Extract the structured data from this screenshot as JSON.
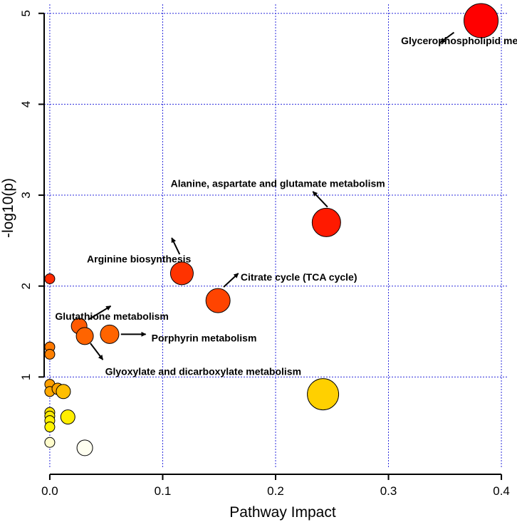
{
  "chart_data": {
    "type": "scatter",
    "title": "",
    "xlabel": "Pathway Impact",
    "ylabel": "-log10(p)",
    "xlim": [
      -0.005,
      0.405
    ],
    "ylim": [
      0.0,
      5.1
    ],
    "xticks": [
      0.0,
      0.1,
      0.2,
      0.3,
      0.4
    ],
    "xtick_labels": [
      "0.0",
      "0.1",
      "0.2",
      "0.3",
      "0.4"
    ],
    "yticks": [
      1,
      2,
      3,
      4,
      5
    ],
    "ytick_labels": [
      "1",
      "2",
      "3",
      "4",
      "5"
    ],
    "grid": true,
    "points": [
      {
        "x": 0.382,
        "y": 4.92,
        "size": 24,
        "color": "#ff0000"
      },
      {
        "x": 0.245,
        "y": 2.7,
        "size": 20,
        "color": "#ff1a00"
      },
      {
        "x": 0.117,
        "y": 2.14,
        "size": 16,
        "color": "#ff3300"
      },
      {
        "x": 0.149,
        "y": 1.84,
        "size": 17,
        "color": "#ff4400"
      },
      {
        "x": 0.026,
        "y": 1.56,
        "size": 11,
        "color": "#ff5a00"
      },
      {
        "x": 0.053,
        "y": 1.47,
        "size": 13,
        "color": "#ff6400"
      },
      {
        "x": 0.031,
        "y": 1.45,
        "size": 12,
        "color": "#ff6400"
      },
      {
        "x": 0.0,
        "y": 2.08,
        "size": 7,
        "color": "#ff2a00"
      },
      {
        "x": 0.0,
        "y": 1.33,
        "size": 7,
        "color": "#ff7800"
      },
      {
        "x": 0.0,
        "y": 1.25,
        "size": 7,
        "color": "#ff8000"
      },
      {
        "x": 0.0,
        "y": 0.92,
        "size": 7,
        "color": "#ffa000"
      },
      {
        "x": 0.0,
        "y": 0.84,
        "size": 7,
        "color": "#ffa800"
      },
      {
        "x": 0.007,
        "y": 0.87,
        "size": 8,
        "color": "#ffa400"
      },
      {
        "x": 0.012,
        "y": 0.84,
        "size": 10,
        "color": "#ffbe00"
      },
      {
        "x": 0.242,
        "y": 0.81,
        "size": 22,
        "color": "#ffd000"
      },
      {
        "x": 0.0,
        "y": 0.61,
        "size": 7,
        "color": "#ffe600"
      },
      {
        "x": 0.0,
        "y": 0.57,
        "size": 7,
        "color": "#ffec00"
      },
      {
        "x": 0.0,
        "y": 0.52,
        "size": 7,
        "color": "#fff000"
      },
      {
        "x": 0.0,
        "y": 0.45,
        "size": 7,
        "color": "#fff400"
      },
      {
        "x": 0.016,
        "y": 0.56,
        "size": 10,
        "color": "#ffee00"
      },
      {
        "x": 0.0,
        "y": 0.28,
        "size": 7,
        "color": "#fffccc"
      },
      {
        "x": 0.031,
        "y": 0.22,
        "size": 11,
        "color": "#fffff0"
      }
    ],
    "annotations": [
      {
        "text": "Glycerophospholipid metabolism",
        "tx": 0.381,
        "ty": 4.7,
        "anchor": "middle",
        "arrow": [
          0.358,
          4.79,
          0.346,
          4.68
        ]
      },
      {
        "text": "Alanine, aspartate and glutamate metabolism",
        "tx": 0.202,
        "ty": 3.13,
        "anchor": "middle",
        "arrow": [
          0.246,
          2.87,
          0.233,
          3.04
        ]
      },
      {
        "text": "Arginine biosynthesis",
        "tx": 0.079,
        "ty": 2.3,
        "anchor": "middle",
        "arrow": [
          0.115,
          2.35,
          0.108,
          2.53
        ]
      },
      {
        "text": "Citrate cycle (TCA cycle)",
        "tx": 0.169,
        "ty": 2.1,
        "anchor": "start",
        "arrow": [
          0.154,
          1.99,
          0.167,
          2.14
        ]
      },
      {
        "text": "Glutathione metabolism",
        "tx": 0.055,
        "ty": 1.67,
        "anchor": "middle",
        "arrow": [
          0.034,
          1.63,
          0.054,
          1.78
        ]
      },
      {
        "text": "Porphyrin metabolism",
        "tx": 0.09,
        "ty": 1.43,
        "anchor": "start",
        "arrow": [
          0.063,
          1.47,
          0.085,
          1.47
        ]
      },
      {
        "text": "Glyoxylate and dicarboxylate metabolism",
        "tx": 0.049,
        "ty": 1.06,
        "anchor": "start",
        "arrow": [
          0.036,
          1.37,
          0.047,
          1.19
        ]
      }
    ]
  }
}
